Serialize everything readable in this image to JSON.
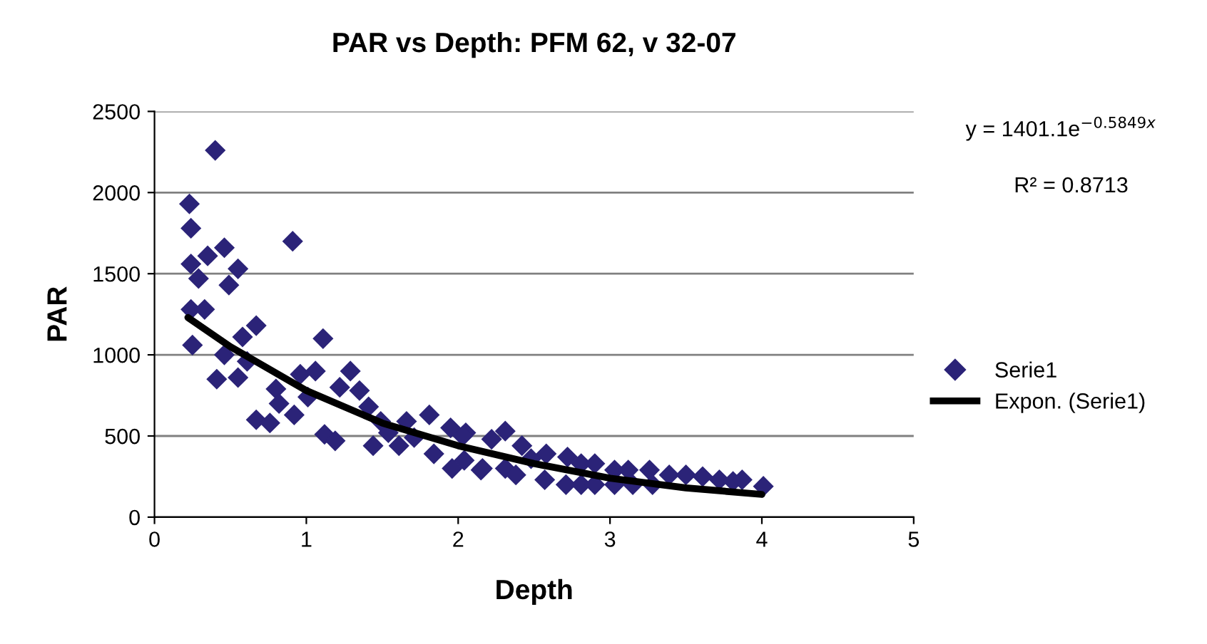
{
  "chart_data": {
    "type": "scatter",
    "title": "PAR vs Depth: PFM 62, v 32-07",
    "xlabel": "Depth",
    "ylabel": "PAR",
    "xlim": [
      0,
      5
    ],
    "xticks": [
      0,
      1,
      2,
      3,
      4,
      5
    ],
    "ylim": [
      0,
      2500
    ],
    "yticks": [
      0,
      500,
      1000,
      1500,
      2000,
      2500
    ],
    "grid": "y",
    "legend": "right",
    "marker": "diamond",
    "annotations": [
      "y = 1401.1e$^{−0.5849x}$",
      "R² = 0.8713"
    ],
    "series": [
      {
        "name": "Serie1",
        "color": "#2b2378",
        "x": [
          0.23,
          0.24,
          0.35,
          0.46,
          0.24,
          0.29,
          0.55,
          0.49,
          0.4,
          0.91,
          0.24,
          0.33,
          0.25,
          0.67,
          0.58,
          0.46,
          0.61,
          0.41,
          0.55,
          1.11,
          0.96,
          1.06,
          0.8,
          0.82,
          1.01,
          0.67,
          0.76,
          0.92,
          1.29,
          1.22,
          1.35,
          1.41,
          1.12,
          1.19,
          1.44,
          1.49,
          1.54,
          1.61,
          1.66,
          1.71,
          1.81,
          1.84,
          1.95,
          1.96,
          2.05,
          2.03,
          2.15,
          2.04,
          2.16,
          2.22,
          2.31,
          2.42,
          2.31,
          2.38,
          2.48,
          2.58,
          2.57,
          2.72,
          2.71,
          2.81,
          2.9,
          2.81,
          2.9,
          3.03,
          3.12,
          3.26,
          3.03,
          3.15,
          3.28,
          3.39,
          3.5,
          3.61,
          3.72,
          3.81,
          3.87,
          4.01
        ],
        "values": [
          1930,
          1780,
          1610,
          1660,
          1560,
          1470,
          1530,
          1430,
          2260,
          1700,
          1280,
          1280,
          1060,
          1180,
          1110,
          1000,
          960,
          850,
          860,
          1100,
          880,
          900,
          790,
          700,
          740,
          600,
          580,
          630,
          900,
          800,
          780,
          680,
          510,
          470,
          440,
          590,
          520,
          440,
          590,
          490,
          630,
          390,
          550,
          300,
          520,
          500,
          290,
          350,
          300,
          480,
          530,
          440,
          300,
          260,
          360,
          390,
          230,
          370,
          200,
          330,
          330,
          200,
          200,
          290,
          290,
          290,
          200,
          200,
          200,
          260,
          260,
          250,
          230,
          220,
          230,
          190
        ]
      },
      {
        "name": "Expon. (Serie1)",
        "type": "line",
        "color": "#000000",
        "marker": "none",
        "line_style": "solid",
        "x": [
          0.22,
          0.5,
          1,
          1.5,
          2,
          2.5,
          3,
          3.5,
          4
        ],
        "values": [
          1230,
          1050,
          780,
          580,
          440,
          330,
          240,
          180,
          140
        ]
      }
    ]
  }
}
